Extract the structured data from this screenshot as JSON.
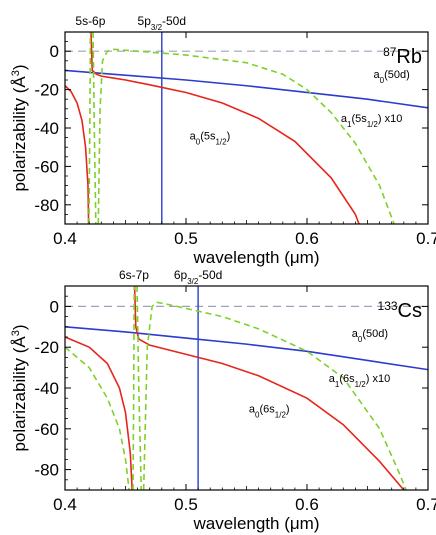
{
  "chart_data": [
    {
      "type": "line",
      "species": {
        "sup": "87",
        "text": "Rb"
      },
      "xlabel": {
        "text": "wavelength (",
        "mu": "μ",
        "unit": "m)"
      },
      "ylabel": {
        "text": "polarizability (",
        "unit": "Å",
        "exp": "3",
        "close": ")"
      },
      "xlim": [
        0.4,
        0.7
      ],
      "ylim": [
        -90,
        10
      ],
      "xticks": [
        0.4,
        0.5,
        0.6,
        0.7
      ],
      "yticks": [
        0,
        -20,
        -40,
        -60,
        -80
      ],
      "top_labels": [
        {
          "text": "5s-6p",
          "x": 0.421
        },
        {
          "text": "5p",
          "sub": "3/2",
          "suffix": "-50d",
          "x": 0.48
        }
      ],
      "vlines": [
        {
          "x": 0.48,
          "color": "#2b3ccf"
        }
      ],
      "zero_line_color": "#9aa6b8",
      "series": [
        {
          "label": {
            "pre": "a",
            "sub0": "0",
            "mid": "(50d)",
            "post": ""
          },
          "label_pos": [
            0.655,
            -14
          ],
          "color": "#2b3ccf",
          "dash": false,
          "points": [
            [
              0.4,
              -10
            ],
            [
              0.5,
              -15
            ],
            [
              0.55,
              -18
            ],
            [
              0.6,
              -21.5
            ],
            [
              0.65,
              -25
            ],
            [
              0.7,
              -29.5
            ]
          ]
        },
        {
          "label": {
            "pre": "a",
            "sub0": "0",
            "mid": "(5s",
            "sub1": "1/2",
            "post": ")"
          },
          "label_pos": [
            0.503,
            -46
          ],
          "color": "#e8251b",
          "dash": false,
          "segments": [
            [
              [
                0.4,
                -18
              ],
              [
                0.405,
                -21
              ],
              [
                0.41,
                -27
              ],
              [
                0.414,
                -36
              ],
              [
                0.417,
                -50
              ],
              [
                0.419,
                -70
              ],
              [
                0.4195,
                -90
              ]
            ],
            [
              [
                0.4215,
                10
              ],
              [
                0.4225,
                -10
              ],
              [
                0.426,
                -12
              ],
              [
                0.43,
                -13
              ],
              [
                0.44,
                -14
              ],
              [
                0.45,
                -15
              ],
              [
                0.47,
                -17.5
              ],
              [
                0.5,
                -21.5
              ],
              [
                0.53,
                -27
              ],
              [
                0.56,
                -35
              ],
              [
                0.59,
                -47
              ],
              [
                0.62,
                -66
              ],
              [
                0.64,
                -85
              ],
              [
                0.643,
                -90
              ]
            ]
          ]
        },
        {
          "label": {
            "pre": "a",
            "sub0": "1",
            "mid": "(5s",
            "sub1": "1/2",
            "post": ") x10"
          },
          "label_pos": [
            0.628,
            -37
          ],
          "color": "#7fd12a",
          "dash": true,
          "segments": [
            [
              [
                0.4198,
                -90
              ],
              [
                0.4205,
                -40
              ],
              [
                0.421,
                10
              ]
            ],
            [
              [
                0.4232,
                10
              ],
              [
                0.4242,
                -40
              ],
              [
                0.4255,
                -90
              ]
            ],
            [
              [
                0.4275,
                -90
              ],
              [
                0.429,
                -30
              ],
              [
                0.431,
                -5
              ],
              [
                0.435,
                0
              ],
              [
                0.44,
                1
              ],
              [
                0.46,
                0
              ],
              [
                0.5,
                -2
              ],
              [
                0.55,
                -6
              ],
              [
                0.58,
                -12
              ],
              [
                0.6,
                -20
              ],
              [
                0.62,
                -32
              ],
              [
                0.64,
                -48
              ],
              [
                0.66,
                -70
              ],
              [
                0.672,
                -90
              ]
            ]
          ]
        }
      ]
    },
    {
      "type": "line",
      "species": {
        "sup": "133",
        "text": "Cs"
      },
      "xlabel": {
        "text": "wavelength (",
        "mu": "μ",
        "unit": "m)"
      },
      "ylabel": {
        "text": "polarizability (",
        "unit": "Å",
        "exp": "3",
        "close": ")"
      },
      "xlim": [
        0.4,
        0.7
      ],
      "ylim": [
        -90,
        10
      ],
      "xticks": [
        0.4,
        0.5,
        0.6,
        0.7
      ],
      "yticks": [
        0,
        -20,
        -40,
        -60,
        -80
      ],
      "top_labels": [
        {
          "text": "6s-7p",
          "x": 0.457
        },
        {
          "text": "6p",
          "sub": "3/2",
          "suffix": "-50d",
          "x": 0.51
        }
      ],
      "vlines": [
        {
          "x": 0.51,
          "color": "#2b3ccf"
        }
      ],
      "zero_line_color": "#9aa6b8",
      "series": [
        {
          "label": {
            "pre": "a",
            "sub0": "0",
            "mid": "(50d)",
            "post": ""
          },
          "label_pos": [
            0.637,
            -15
          ],
          "color": "#2b3ccf",
          "dash": false,
          "points": [
            [
              0.4,
              -10
            ],
            [
              0.45,
              -12.5
            ],
            [
              0.5,
              -15.5
            ],
            [
              0.55,
              -18.5
            ],
            [
              0.6,
              -22
            ],
            [
              0.65,
              -26.5
            ],
            [
              0.7,
              -31
            ]
          ]
        },
        {
          "label": {
            "pre": "a",
            "sub0": "0",
            "mid": "(6s",
            "sub1": "1/2",
            "post": ")"
          },
          "label_pos": [
            0.552,
            -52
          ],
          "color": "#e8251b",
          "dash": false,
          "segments": [
            [
              [
                0.4,
                -15
              ],
              [
                0.42,
                -20
              ],
              [
                0.435,
                -28
              ],
              [
                0.445,
                -40
              ],
              [
                0.45,
                -52
              ],
              [
                0.454,
                -72
              ],
              [
                0.4555,
                -90
              ]
            ],
            [
              [
                0.4575,
                10
              ],
              [
                0.4585,
                -10
              ],
              [
                0.461,
                -16
              ],
              [
                0.47,
                -19
              ],
              [
                0.49,
                -22
              ],
              [
                0.51,
                -25
              ],
              [
                0.53,
                -28
              ],
              [
                0.56,
                -34
              ],
              [
                0.6,
                -45
              ],
              [
                0.63,
                -58
              ],
              [
                0.66,
                -76
              ],
              [
                0.68,
                -90
              ]
            ]
          ]
        },
        {
          "label": {
            "pre": "a",
            "sub0": "1",
            "mid": "(6s",
            "sub1": "1/2",
            "post": ") x10"
          },
          "label_pos": [
            0.618,
            -37
          ],
          "color": "#7fd12a",
          "dash": true,
          "segments": [
            [
              [
                0.4,
                -20
              ],
              [
                0.42,
                -30
              ],
              [
                0.435,
                -45
              ],
              [
                0.445,
                -60
              ],
              [
                0.45,
                -75
              ],
              [
                0.453,
                -90
              ]
            ],
            [
              [
                0.4562,
                -90
              ],
              [
                0.4568,
                -40
              ],
              [
                0.4572,
                10
              ]
            ],
            [
              [
                0.4595,
                10
              ],
              [
                0.461,
                -40
              ],
              [
                0.463,
                -90
              ]
            ],
            [
              [
                0.465,
                -90
              ],
              [
                0.468,
                -20
              ],
              [
                0.472,
                0
              ],
              [
                0.476,
                2
              ],
              [
                0.485,
                1
              ],
              [
                0.5,
                -1
              ],
              [
                0.53,
                -5
              ],
              [
                0.56,
                -11
              ],
              [
                0.6,
                -22
              ],
              [
                0.63,
                -35
              ],
              [
                0.66,
                -60
              ],
              [
                0.675,
                -80
              ],
              [
                0.682,
                -90
              ]
            ]
          ]
        }
      ]
    }
  ]
}
